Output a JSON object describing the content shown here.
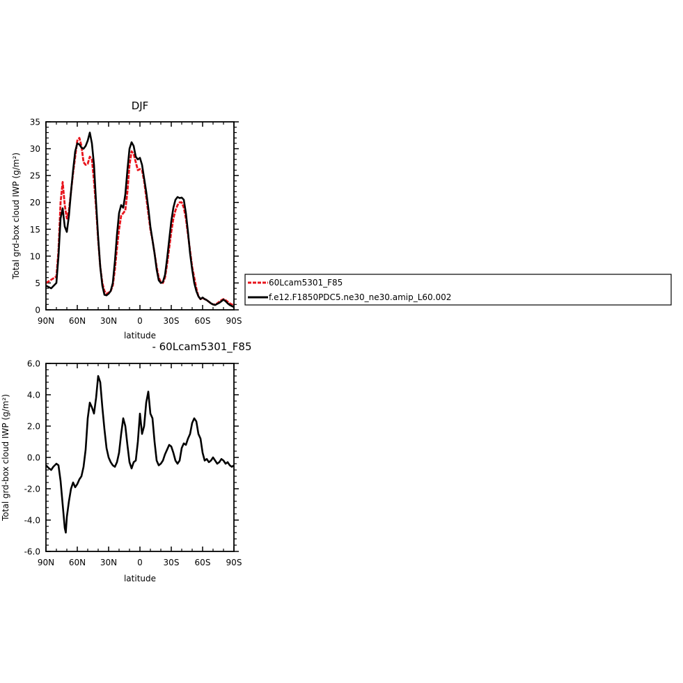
{
  "colors": {
    "series_red": "#e8141c",
    "series_black": "#000000",
    "axis": "#000000",
    "background": "#ffffff"
  },
  "chart_data": [
    {
      "type": "line",
      "title": "DJF",
      "xlabel": "latitude",
      "ylabel": "Total grd-box cloud IWP (g/m²)",
      "xlim": [
        90,
        -90
      ],
      "ylim": [
        0,
        35
      ],
      "x_reversed_note": "90N on left, 90S on right",
      "x_tick_values": [
        90,
        60,
        30,
        0,
        -30,
        -60,
        -90
      ],
      "x_tick_labels": [
        "90N",
        "60N",
        "30N",
        "0",
        "30S",
        "60S",
        "90S"
      ],
      "y_tick_values": [
        0,
        5,
        10,
        15,
        20,
        25,
        30,
        35
      ],
      "y_tick_labels": [
        "0",
        "5",
        "10",
        "15",
        "20",
        "25",
        "30",
        "35"
      ],
      "legend": {
        "placement": "right",
        "entries": [
          "60Lcam5301_F85",
          "f.e12.F1850PDC5.ne30_ne30.amip_L60.002"
        ]
      },
      "series": [
        {
          "name": "60Lcam5301_F85",
          "style": "dashed",
          "x": [
            90,
            85,
            80,
            78,
            76,
            74,
            72,
            70,
            68,
            66,
            64,
            62,
            60,
            58,
            56,
            54,
            52,
            50,
            48,
            46,
            44,
            42,
            40,
            38,
            36,
            34,
            32,
            30,
            28,
            26,
            24,
            22,
            20,
            18,
            16,
            14,
            12,
            10,
            8,
            6,
            4,
            2,
            0,
            -2,
            -4,
            -6,
            -8,
            -10,
            -12,
            -14,
            -16,
            -18,
            -20,
            -22,
            -24,
            -26,
            -28,
            -30,
            -32,
            -34,
            -36,
            -38,
            -40,
            -42,
            -44,
            -46,
            -48,
            -50,
            -52,
            -54,
            -56,
            -58,
            -60,
            -62,
            -64,
            -66,
            -68,
            -70,
            -72,
            -74,
            -76,
            -78,
            -80,
            -82,
            -84,
            -86,
            -88,
            -90
          ],
          "values": [
            5.0,
            5.6,
            6.2,
            11.0,
            20.0,
            23.8,
            19.5,
            17.0,
            18.5,
            22.0,
            25.5,
            28.5,
            31.5,
            32.0,
            30.5,
            27.5,
            27.0,
            27.2,
            28.5,
            28.0,
            24.0,
            19.0,
            13.0,
            8.0,
            5.0,
            3.5,
            3.0,
            3.2,
            3.5,
            4.5,
            7.5,
            11.5,
            15.0,
            17.5,
            18.0,
            18.5,
            22.0,
            27.0,
            29.5,
            29.0,
            27.5,
            26.0,
            26.2,
            26.0,
            24.0,
            21.0,
            18.0,
            15.0,
            13.0,
            10.5,
            8.0,
            6.0,
            5.2,
            5.0,
            6.0,
            8.5,
            11.5,
            14.5,
            17.0,
            18.5,
            19.5,
            20.0,
            20.0,
            19.0,
            17.0,
            14.0,
            11.0,
            8.0,
            6.0,
            4.0,
            2.5,
            2.0,
            2.2,
            2.0,
            1.8,
            1.5,
            1.2,
            1.0,
            1.0,
            1.2,
            1.5,
            1.8,
            2.0,
            1.8,
            1.5,
            1.2,
            1.0,
            0.8
          ]
        },
        {
          "name": "f.e12.F1850PDC5.ne30_ne30.amip_L60.002",
          "style": "solid",
          "x": [
            90,
            85,
            80,
            78,
            76,
            74,
            72,
            70,
            68,
            66,
            64,
            62,
            60,
            58,
            56,
            54,
            52,
            50,
            48,
            46,
            44,
            42,
            40,
            38,
            36,
            34,
            32,
            30,
            28,
            26,
            24,
            22,
            20,
            18,
            16,
            14,
            12,
            10,
            8,
            6,
            4,
            2,
            0,
            -2,
            -4,
            -6,
            -8,
            -10,
            -12,
            -14,
            -16,
            -18,
            -20,
            -22,
            -24,
            -26,
            -28,
            -30,
            -32,
            -34,
            -36,
            -38,
            -40,
            -42,
            -44,
            -46,
            -48,
            -50,
            -52,
            -54,
            -56,
            -58,
            -60,
            -62,
            -64,
            -66,
            -68,
            -70,
            -72,
            -74,
            -76,
            -78,
            -80,
            -82,
            -84,
            -86,
            -88,
            -90
          ],
          "values": [
            4.5,
            4.0,
            5.0,
            10.0,
            17.0,
            18.9,
            15.5,
            14.5,
            17.5,
            22.0,
            26.0,
            29.5,
            31.0,
            30.8,
            30.2,
            30.0,
            30.5,
            31.5,
            33.0,
            31.0,
            27.0,
            20.0,
            13.5,
            8.0,
            4.5,
            2.8,
            2.7,
            3.0,
            3.5,
            5.0,
            9.0,
            14.0,
            18.0,
            19.5,
            19.0,
            21.5,
            26.0,
            30.0,
            31.2,
            30.5,
            28.5,
            28.0,
            28.3,
            27.0,
            24.5,
            22.0,
            19.0,
            15.5,
            13.0,
            10.5,
            7.5,
            5.5,
            5.0,
            5.2,
            6.5,
            9.5,
            13.0,
            16.5,
            19.0,
            20.5,
            21.0,
            20.8,
            20.9,
            20.5,
            18.0,
            14.5,
            10.5,
            7.5,
            5.0,
            3.5,
            2.5,
            2.0,
            2.3,
            2.0,
            1.8,
            1.5,
            1.2,
            1.0,
            0.9,
            1.1,
            1.3,
            1.6,
            1.9,
            1.6,
            1.2,
            0.9,
            0.7,
            0.5
          ]
        }
      ]
    },
    {
      "type": "line",
      "title": "- 60Lcam5301_F85",
      "xlabel": "latitude",
      "ylabel": "Total grd-box cloud IWP (g/m²)",
      "xlim": [
        90,
        -90
      ],
      "ylim": [
        -6.0,
        6.0
      ],
      "x_tick_values": [
        90,
        60,
        30,
        0,
        -30,
        -60,
        -90
      ],
      "x_tick_labels": [
        "90N",
        "60N",
        "30N",
        "0",
        "30S",
        "60S",
        "90S"
      ],
      "y_tick_values": [
        -6.0,
        -4.0,
        -2.0,
        0.0,
        2.0,
        4.0,
        6.0
      ],
      "y_tick_labels": [
        "-6.0",
        "-4.0",
        "-2.0",
        "0.0",
        "2.0",
        "4.0",
        "6.0"
      ],
      "series": [
        {
          "style": "solid",
          "x": [
            90,
            87,
            85,
            83,
            80,
            78,
            76,
            74,
            72,
            71,
            70,
            68,
            66,
            64,
            62,
            60,
            58,
            56,
            54,
            52,
            50,
            48,
            46,
            44,
            42,
            40,
            38,
            36,
            34,
            32,
            30,
            28,
            26,
            24,
            22,
            20,
            18,
            16,
            14,
            12,
            10,
            8,
            6,
            4,
            2,
            0,
            -2,
            -4,
            -6,
            -8,
            -10,
            -12,
            -14,
            -16,
            -18,
            -20,
            -22,
            -24,
            -26,
            -28,
            -30,
            -32,
            -34,
            -36,
            -38,
            -40,
            -42,
            -44,
            -46,
            -48,
            -50,
            -52,
            -54,
            -56,
            -58,
            -60,
            -62,
            -64,
            -66,
            -68,
            -70,
            -72,
            -74,
            -76,
            -78,
            -80,
            -82,
            -84,
            -86,
            -88,
            -90
          ],
          "values": [
            -0.5,
            -0.7,
            -0.8,
            -0.6,
            -0.4,
            -0.5,
            -1.5,
            -3.0,
            -4.5,
            -4.8,
            -3.8,
            -2.8,
            -2.0,
            -1.6,
            -1.9,
            -1.7,
            -1.4,
            -1.2,
            -0.6,
            0.5,
            2.5,
            3.5,
            3.2,
            2.8,
            3.8,
            5.2,
            4.8,
            3.2,
            1.8,
            0.6,
            0.0,
            -0.3,
            -0.5,
            -0.6,
            -0.3,
            0.3,
            1.5,
            2.5,
            2.0,
            0.8,
            -0.3,
            -0.7,
            -0.3,
            -0.2,
            1.0,
            2.8,
            1.5,
            2.0,
            3.5,
            4.2,
            2.8,
            2.5,
            1.0,
            -0.2,
            -0.5,
            -0.4,
            -0.2,
            0.2,
            0.5,
            0.8,
            0.7,
            0.3,
            -0.2,
            -0.4,
            -0.2,
            0.6,
            0.9,
            0.8,
            1.2,
            1.5,
            2.2,
            2.5,
            2.3,
            1.5,
            1.2,
            0.3,
            -0.2,
            -0.1,
            -0.3,
            -0.2,
            0.0,
            -0.2,
            -0.4,
            -0.3,
            -0.1,
            -0.2,
            -0.4,
            -0.3,
            -0.5,
            -0.6,
            -0.5
          ]
        }
      ]
    }
  ]
}
